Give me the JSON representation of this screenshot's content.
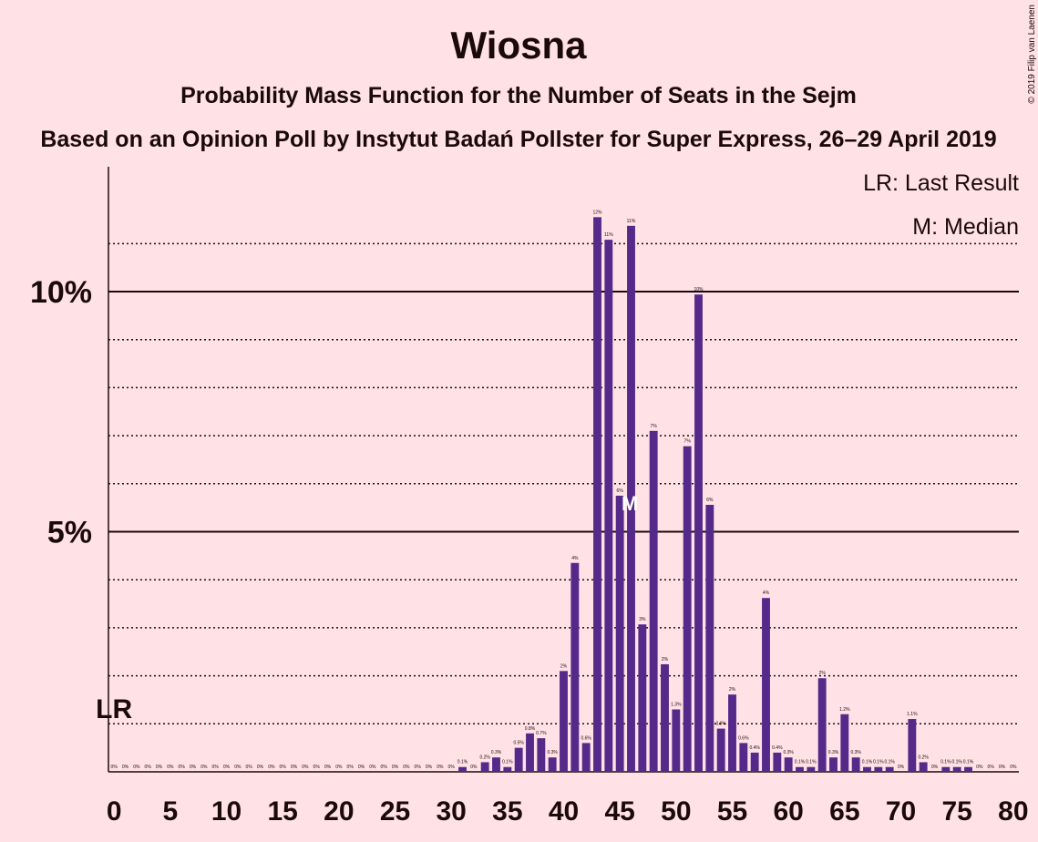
{
  "chart_data": {
    "type": "bar",
    "title": "Wiosna",
    "subtitle": "Probability Mass Function for the Number of Seats in the Sejm",
    "subtitle2": "Based on an Opinion Poll by Instytut Badań Pollster for Super Express, 26–29 April 2019",
    "copyright": "© 2019 Filip van Laenen",
    "legend": [
      "LR: Last Result",
      "M: Median"
    ],
    "last_result": {
      "x": 0,
      "label": "LR"
    },
    "median": {
      "x": 46,
      "label": "M"
    },
    "color": "#55298a",
    "x": [
      0,
      1,
      2,
      3,
      4,
      5,
      6,
      7,
      8,
      9,
      10,
      11,
      12,
      13,
      14,
      15,
      16,
      17,
      18,
      19,
      20,
      21,
      22,
      23,
      24,
      25,
      26,
      27,
      28,
      29,
      30,
      31,
      32,
      33,
      34,
      35,
      36,
      37,
      38,
      39,
      40,
      41,
      42,
      43,
      44,
      45,
      46,
      47,
      48,
      49,
      50,
      51,
      52,
      53,
      54,
      55,
      56,
      57,
      58,
      59,
      60,
      61,
      62,
      63,
      64,
      65,
      66,
      67,
      68,
      69,
      70,
      71,
      72,
      73,
      74,
      75,
      76,
      77,
      78,
      79,
      80
    ],
    "values": [
      0,
      0,
      0,
      0,
      0,
      0,
      0,
      0,
      0,
      0,
      0,
      0,
      0,
      0,
      0,
      0,
      0,
      0,
      0,
      0,
      0,
      0,
      0,
      0,
      0,
      0,
      0,
      0,
      0,
      0,
      0,
      0.1,
      0,
      0.2,
      0.3,
      0.1,
      0.5,
      0.8,
      0.7,
      0.3,
      2.1,
      4.35,
      0.6,
      11.55,
      11.08,
      5.75,
      11.37,
      3.07,
      7.1,
      2.24,
      1.3,
      6.78,
      9.94,
      5.56,
      0.9,
      1.61,
      0.6,
      0.4,
      3.62,
      0.4,
      0.3,
      0.1,
      0.1,
      1.95,
      0.3,
      1.2,
      0.3,
      0.1,
      0.1,
      0.1,
      0,
      1.1,
      0.2,
      0,
      0.1,
      0.1,
      0.1,
      0,
      0,
      0,
      0
    ],
    "value_labels": [
      "0%",
      "0%",
      "0%",
      "0%",
      "0%",
      "0%",
      "0%",
      "0%",
      "0%",
      "0%",
      "0%",
      "0%",
      "0%",
      "0%",
      "0%",
      "0%",
      "0%",
      "0%",
      "0%",
      "0%",
      "0%",
      "0%",
      "0%",
      "0%",
      "0%",
      "0%",
      "0%",
      "0%",
      "0%",
      "0%",
      "0%",
      "0.1%",
      "0%",
      "0.2%",
      "0.3%",
      "0.1%",
      "0.5%",
      "0.8%",
      "0.7%",
      "0.3%",
      "2%",
      "4%",
      "0.6%",
      "12%",
      "11%",
      "6%",
      "11%",
      "3%",
      "7%",
      "2%",
      "1.3%",
      "7%",
      "10%",
      "6%",
      "0.9%",
      "2%",
      "0.6%",
      "0.4%",
      "4%",
      "0.4%",
      "0.3%",
      "0.1%",
      "0.1%",
      "2%",
      "0.3%",
      "1.2%",
      "0.3%",
      "0.1%",
      "0.1%",
      "0.1%",
      "0%",
      "1.1%",
      "0.2%",
      "0%",
      "0.1%",
      "0.1%",
      "0.1%",
      "0%",
      "0%",
      "0%",
      "0%"
    ],
    "xlim": [
      -0.5,
      80.5
    ],
    "xticks": [
      0,
      5,
      10,
      15,
      20,
      25,
      30,
      35,
      40,
      45,
      50,
      55,
      60,
      65,
      70,
      75,
      80
    ],
    "ylim": [
      0,
      12.6
    ],
    "yticks": [
      {
        "value": 5,
        "label": "5%"
      },
      {
        "value": 10,
        "label": "10%"
      }
    ],
    "minor_yticks": [
      1,
      2,
      3,
      4,
      6,
      7,
      8,
      9,
      11
    ],
    "grid": true
  }
}
